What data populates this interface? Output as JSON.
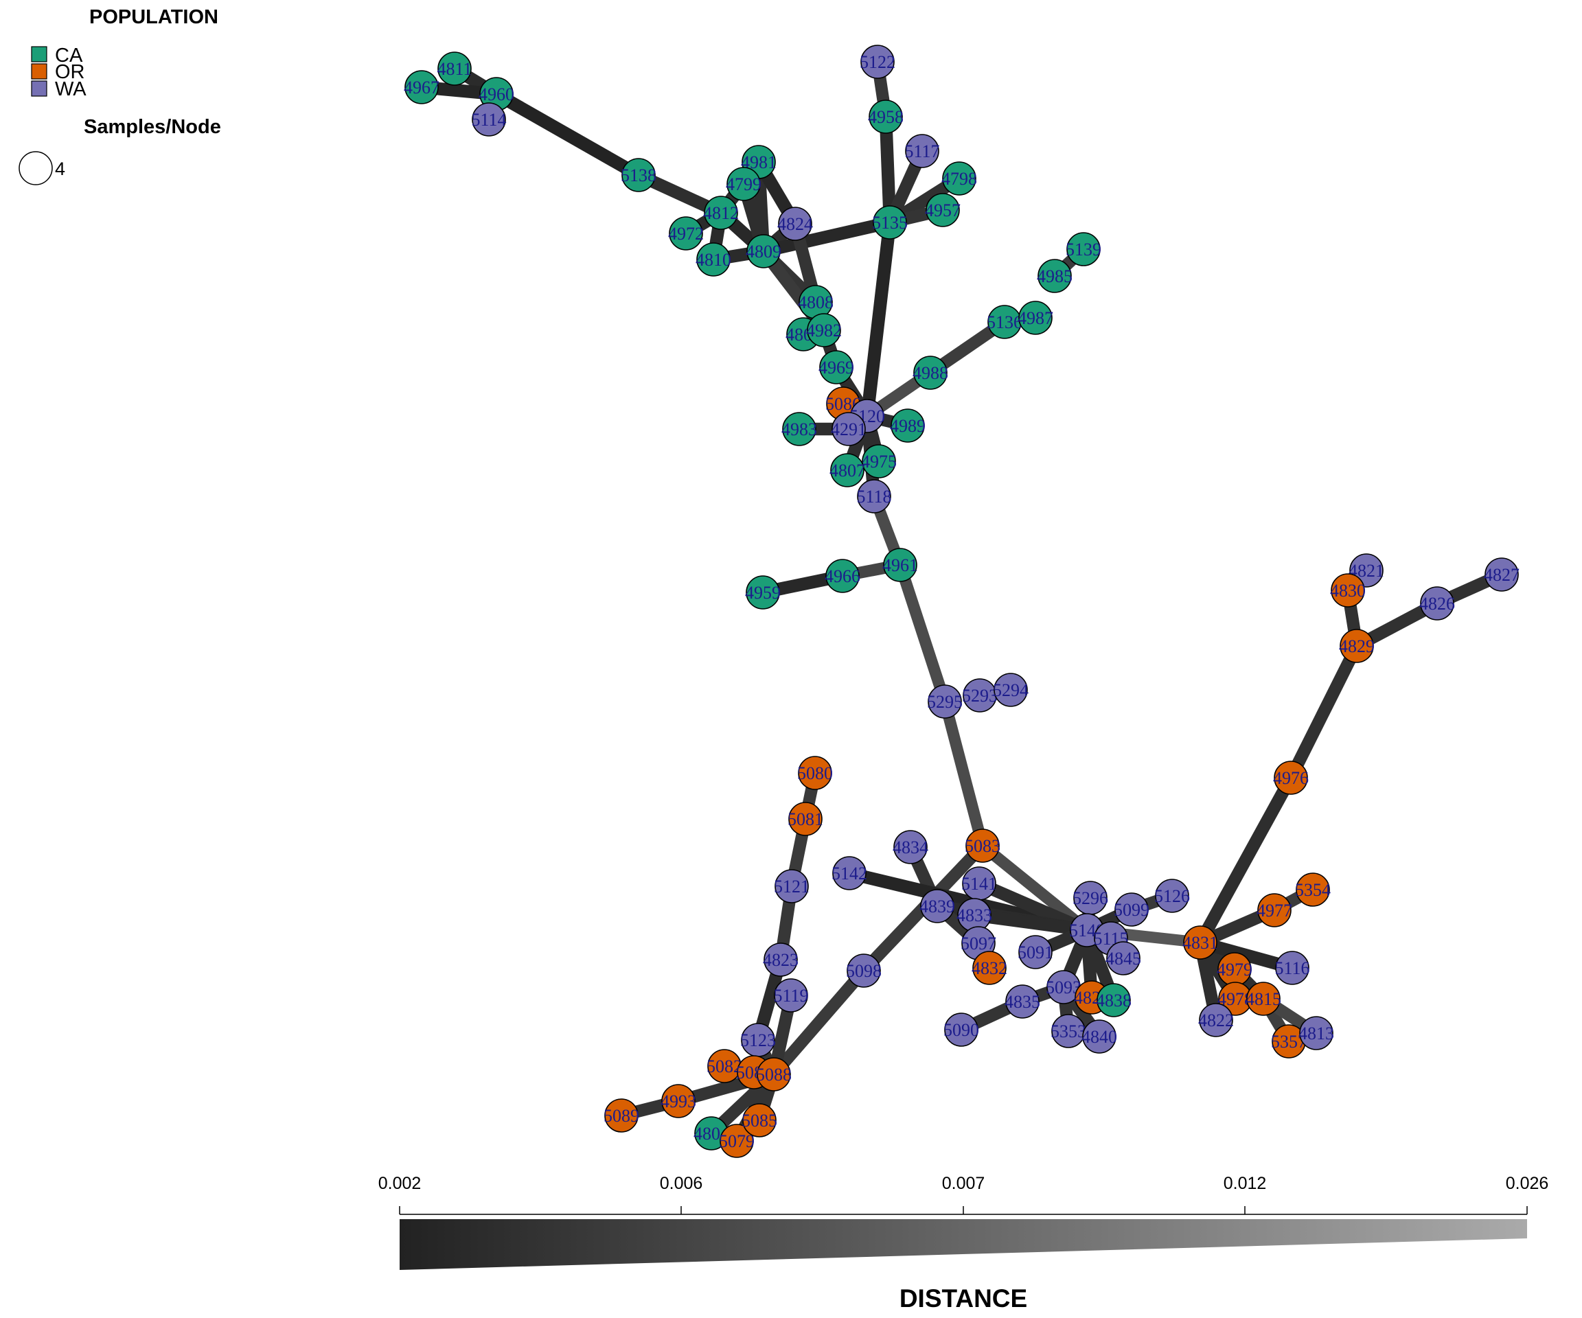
{
  "legend": {
    "population_title": "POPULATION",
    "populations": [
      {
        "label": "CA",
        "color": "#1b9e77"
      },
      {
        "label": "OR",
        "color": "#d95f02"
      },
      {
        "label": "WA",
        "color": "#7570b3"
      }
    ],
    "size_title": "Samples/Node",
    "size_value": "4"
  },
  "scale": {
    "title": "DISTANCE",
    "ticks": [
      "0.002",
      "0.006",
      "0.007",
      "0.012",
      "0.026"
    ],
    "gradient_start": "#222222",
    "gradient_end": "#aaaaaa"
  },
  "nodes": [
    {
      "id": "4811",
      "pop": "CA"
    },
    {
      "id": "4967",
      "pop": "CA"
    },
    {
      "id": "4960",
      "pop": "CA"
    },
    {
      "id": "5114",
      "pop": "WA"
    },
    {
      "id": "5138",
      "pop": "CA"
    },
    {
      "id": "4981",
      "pop": "CA"
    },
    {
      "id": "4799",
      "pop": "CA"
    },
    {
      "id": "4812",
      "pop": "CA"
    },
    {
      "id": "4972",
      "pop": "CA"
    },
    {
      "id": "4810",
      "pop": "CA"
    },
    {
      "id": "4809",
      "pop": "CA"
    },
    {
      "id": "4824",
      "pop": "WA"
    },
    {
      "id": "5122",
      "pop": "WA"
    },
    {
      "id": "4958",
      "pop": "CA"
    },
    {
      "id": "5117",
      "pop": "WA"
    },
    {
      "id": "4798",
      "pop": "CA"
    },
    {
      "id": "4957",
      "pop": "CA"
    },
    {
      "id": "5135",
      "pop": "CA"
    },
    {
      "id": "5139",
      "pop": "CA"
    },
    {
      "id": "4985",
      "pop": "CA"
    },
    {
      "id": "5136",
      "pop": "CA"
    },
    {
      "id": "4987",
      "pop": "CA"
    },
    {
      "id": "4988",
      "pop": "CA"
    },
    {
      "id": "4808",
      "pop": "CA"
    },
    {
      "id": "4805",
      "pop": "CA"
    },
    {
      "id": "4982",
      "pop": "CA"
    },
    {
      "id": "4969",
      "pop": "CA"
    },
    {
      "id": "5086",
      "pop": "OR"
    },
    {
      "id": "5120",
      "pop": "WA"
    },
    {
      "id": "4983",
      "pop": "CA"
    },
    {
      "id": "4291",
      "pop": "WA"
    },
    {
      "id": "4989",
      "pop": "CA"
    },
    {
      "id": "4975",
      "pop": "CA"
    },
    {
      "id": "4807",
      "pop": "CA"
    },
    {
      "id": "5118",
      "pop": "WA"
    },
    {
      "id": "4961",
      "pop": "CA"
    },
    {
      "id": "4966",
      "pop": "CA"
    },
    {
      "id": "4959",
      "pop": "CA"
    },
    {
      "id": "5295",
      "pop": "WA"
    },
    {
      "id": "5293",
      "pop": "WA"
    },
    {
      "id": "5294",
      "pop": "WA"
    },
    {
      "id": "4821",
      "pop": "WA"
    },
    {
      "id": "4830",
      "pop": "OR"
    },
    {
      "id": "4827",
      "pop": "WA"
    },
    {
      "id": "4826",
      "pop": "WA"
    },
    {
      "id": "4829",
      "pop": "OR"
    },
    {
      "id": "4976",
      "pop": "OR"
    },
    {
      "id": "5080",
      "pop": "OR"
    },
    {
      "id": "5081",
      "pop": "OR"
    },
    {
      "id": "5121",
      "pop": "WA"
    },
    {
      "id": "4823",
      "pop": "WA"
    },
    {
      "id": "5119",
      "pop": "WA"
    },
    {
      "id": "5123",
      "pop": "WA"
    },
    {
      "id": "5082",
      "pop": "OR"
    },
    {
      "id": "5084",
      "pop": "OR"
    },
    {
      "id": "5088",
      "pop": "OR"
    },
    {
      "id": "5089",
      "pop": "OR"
    },
    {
      "id": "4993",
      "pop": "OR"
    },
    {
      "id": "4804",
      "pop": "CA"
    },
    {
      "id": "5079",
      "pop": "OR"
    },
    {
      "id": "5085",
      "pop": "OR"
    },
    {
      "id": "5098",
      "pop": "WA"
    },
    {
      "id": "5083",
      "pop": "OR"
    },
    {
      "id": "4834",
      "pop": "WA"
    },
    {
      "id": "5142",
      "pop": "WA"
    },
    {
      "id": "5141",
      "pop": "WA"
    },
    {
      "id": "4839",
      "pop": "WA"
    },
    {
      "id": "4833",
      "pop": "WA"
    },
    {
      "id": "5097",
      "pop": "WA"
    },
    {
      "id": "4832",
      "pop": "OR"
    },
    {
      "id": "5091",
      "pop": "WA"
    },
    {
      "id": "5296",
      "pop": "WA"
    },
    {
      "id": "5099",
      "pop": "WA"
    },
    {
      "id": "5126",
      "pop": "WA"
    },
    {
      "id": "5140",
      "pop": "WA"
    },
    {
      "id": "5115",
      "pop": "WA"
    },
    {
      "id": "4845",
      "pop": "WA"
    },
    {
      "id": "5093",
      "pop": "WA"
    },
    {
      "id": "4828",
      "pop": "OR"
    },
    {
      "id": "4838",
      "pop": "CA"
    },
    {
      "id": "4835",
      "pop": "WA"
    },
    {
      "id": "5090",
      "pop": "WA"
    },
    {
      "id": "5353",
      "pop": "WA"
    },
    {
      "id": "4840",
      "pop": "WA"
    },
    {
      "id": "4831",
      "pop": "OR"
    },
    {
      "id": "5354",
      "pop": "OR"
    },
    {
      "id": "4977",
      "pop": "OR"
    },
    {
      "id": "4979",
      "pop": "OR"
    },
    {
      "id": "5116",
      "pop": "WA"
    },
    {
      "id": "4978",
      "pop": "OR"
    },
    {
      "id": "4815",
      "pop": "OR"
    },
    {
      "id": "4822",
      "pop": "WA"
    },
    {
      "id": "5357",
      "pop": "OR"
    },
    {
      "id": "4813",
      "pop": "WA"
    }
  ],
  "edges": [
    {
      "a": "4811",
      "b": "4960",
      "d": 0.0035
    },
    {
      "a": "4967",
      "b": "4960",
      "d": 0.0025
    },
    {
      "a": "4960",
      "b": "5114",
      "d": 0.0025
    },
    {
      "a": "4960",
      "b": "5138",
      "d": 0.0022
    },
    {
      "a": "5138",
      "b": "4812",
      "d": 0.004
    },
    {
      "a": "4812",
      "b": "4981",
      "d": 0.0045
    },
    {
      "a": "4812",
      "b": "4799",
      "d": 0.004
    },
    {
      "a": "4812",
      "b": "4972",
      "d": 0.0035
    },
    {
      "a": "4812",
      "b": "4810",
      "d": 0.0035
    },
    {
      "a": "4812",
      "b": "4809",
      "d": 0.003
    },
    {
      "a": "4981",
      "b": "4809",
      "d": 0.004
    },
    {
      "a": "4799",
      "b": "4809",
      "d": 0.004
    },
    {
      "a": "4981",
      "b": "4824",
      "d": 0.0028
    },
    {
      "a": "4810",
      "b": "4809",
      "d": 0.0035
    },
    {
      "a": "4809",
      "b": "4824",
      "d": 0.004
    },
    {
      "a": "4809",
      "b": "5135",
      "d": 0.003
    },
    {
      "a": "4824",
      "b": "4808",
      "d": 0.005
    },
    {
      "a": "4809",
      "b": "4808",
      "d": 0.005
    },
    {
      "a": "4809",
      "b": "4982",
      "d": 0.006
    },
    {
      "a": "5122",
      "b": "4958",
      "d": 0.0055
    },
    {
      "a": "4958",
      "b": "5135",
      "d": 0.0035
    },
    {
      "a": "5117",
      "b": "5135",
      "d": 0.0045
    },
    {
      "a": "4798",
      "b": "5135",
      "d": 0.0045
    },
    {
      "a": "4957",
      "b": "5135",
      "d": 0.005
    },
    {
      "a": "5135",
      "b": "5120",
      "d": 0.0025
    },
    {
      "a": "5139",
      "b": "4985",
      "d": 0.0065
    },
    {
      "a": "5136",
      "b": "4987",
      "d": 0.0045
    },
    {
      "a": "5136",
      "b": "4988",
      "d": 0.0065
    },
    {
      "a": "4988",
      "b": "5120",
      "d": 0.009
    },
    {
      "a": "4808",
      "b": "4982",
      "d": 0.004
    },
    {
      "a": "4805",
      "b": "4982",
      "d": 0.004
    },
    {
      "a": "4982",
      "b": "4969",
      "d": 0.004
    },
    {
      "a": "4969",
      "b": "5120",
      "d": 0.004
    },
    {
      "a": "5086",
      "b": "5120",
      "d": 0.004
    },
    {
      "a": "4983",
      "b": "4291",
      "d": 0.004
    },
    {
      "a": "4291",
      "b": "5120",
      "d": 0.004
    },
    {
      "a": "4989",
      "b": "5120",
      "d": 0.004
    },
    {
      "a": "4975",
      "b": "5120",
      "d": 0.004
    },
    {
      "a": "4807",
      "b": "5120",
      "d": 0.004
    },
    {
      "a": "5118",
      "b": "5120",
      "d": 0.004
    },
    {
      "a": "5118",
      "b": "4961",
      "d": 0.009
    },
    {
      "a": "4961",
      "b": "4966",
      "d": 0.008
    },
    {
      "a": "4966",
      "b": "4959",
      "d": 0.003
    },
    {
      "a": "4961",
      "b": "5295",
      "d": 0.009
    },
    {
      "a": "5295",
      "b": "5083",
      "d": 0.009
    },
    {
      "a": "5083",
      "b": "5140",
      "d": 0.009
    },
    {
      "a": "5083",
      "b": "5098",
      "d": 0.006
    },
    {
      "a": "5098",
      "b": "5088",
      "d": 0.006
    },
    {
      "a": "5080",
      "b": "5081",
      "d": 0.006
    },
    {
      "a": "5081",
      "b": "5121",
      "d": 0.006
    },
    {
      "a": "5121",
      "b": "4823",
      "d": 0.0055
    },
    {
      "a": "4823",
      "b": "5123",
      "d": 0.0035
    },
    {
      "a": "5119",
      "b": "5088",
      "d": 0.005
    },
    {
      "a": "5123",
      "b": "5088",
      "d": 0.005
    },
    {
      "a": "5082",
      "b": "5088",
      "d": 0.004
    },
    {
      "a": "5088",
      "b": "4993",
      "d": 0.005
    },
    {
      "a": "4993",
      "b": "5089",
      "d": 0.005
    },
    {
      "a": "5088",
      "b": "4804",
      "d": 0.005
    },
    {
      "a": "5088",
      "b": "5079",
      "d": 0.005
    },
    {
      "a": "5088",
      "b": "5085",
      "d": 0.005
    },
    {
      "a": "4834",
      "b": "4839",
      "d": 0.005
    },
    {
      "a": "5142",
      "b": "5140",
      "d": 0.0025
    },
    {
      "a": "5141",
      "b": "5140",
      "d": 0.004
    },
    {
      "a": "4839",
      "b": "5140",
      "d": 0.0035
    },
    {
      "a": "4833",
      "b": "5140",
      "d": 0.0035
    },
    {
      "a": "4839",
      "b": "5097",
      "d": 0.005
    },
    {
      "a": "5097",
      "b": "4832",
      "d": 0.005
    },
    {
      "a": "5091",
      "b": "5140",
      "d": 0.004
    },
    {
      "a": "5296",
      "b": "5140",
      "d": 0.004
    },
    {
      "a": "5099",
      "b": "5140",
      "d": 0.004
    },
    {
      "a": "5126",
      "b": "5099",
      "d": 0.006
    },
    {
      "a": "5115",
      "b": "5140",
      "d": 0.004
    },
    {
      "a": "4845",
      "b": "5140",
      "d": 0.004
    },
    {
      "a": "5093",
      "b": "5140",
      "d": 0.004
    },
    {
      "a": "4828",
      "b": "5140",
      "d": 0.004
    },
    {
      "a": "4838",
      "b": "5140",
      "d": 0.004
    },
    {
      "a": "5093",
      "b": "4835",
      "d": 0.005
    },
    {
      "a": "4835",
      "b": "5090",
      "d": 0.005
    },
    {
      "a": "5093",
      "b": "5353",
      "d": 0.005
    },
    {
      "a": "5093",
      "b": "4840",
      "d": 0.005
    },
    {
      "a": "5140",
      "b": "4831",
      "d": 0.011
    },
    {
      "a": "4831",
      "b": "4976",
      "d": 0.004
    },
    {
      "a": "4976",
      "b": "4829",
      "d": 0.0045
    },
    {
      "a": "4829",
      "b": "4830",
      "d": 0.0045
    },
    {
      "a": "4830",
      "b": "4821",
      "d": 0.005
    },
    {
      "a": "4829",
      "b": "4826",
      "d": 0.0045
    },
    {
      "a": "4826",
      "b": "4827",
      "d": 0.0045
    },
    {
      "a": "4831",
      "b": "4977",
      "d": 0.0045
    },
    {
      "a": "4977",
      "b": "5354",
      "d": 0.0065
    },
    {
      "a": "4831",
      "b": "4979",
      "d": 0.004
    },
    {
      "a": "4831",
      "b": "5116",
      "d": 0.003
    },
    {
      "a": "4831",
      "b": "4978",
      "d": 0.004
    },
    {
      "a": "4831",
      "b": "4822",
      "d": 0.004
    },
    {
      "a": "4979",
      "b": "4815",
      "d": 0.0045
    },
    {
      "a": "4815",
      "b": "5357",
      "d": 0.007
    },
    {
      "a": "4815",
      "b": "4813",
      "d": 0.008
    }
  ]
}
